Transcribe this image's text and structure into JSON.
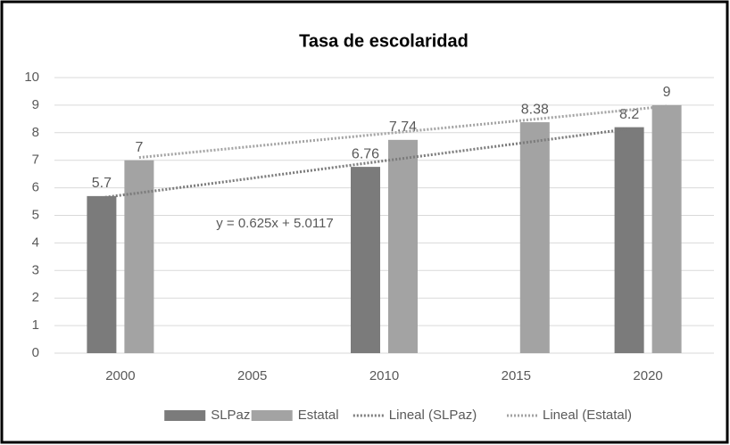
{
  "chart_data": {
    "type": "bar",
    "title": "Tasa de escolaridad",
    "categories": [
      "2000",
      "2005",
      "2010",
      "2015",
      "2020"
    ],
    "series": [
      {
        "name": "SLPaz",
        "color": "#7b7b7b",
        "values": [
          5.7,
          null,
          6.76,
          null,
          8.2
        ]
      },
      {
        "name": "Estatal",
        "color": "#a3a3a3",
        "values": [
          7,
          null,
          7.74,
          8.38,
          9
        ]
      },
      {
        "name": "Lineal (SLPaz)",
        "type": "line",
        "dash": true,
        "color": "#7b7b7b",
        "values": [
          5.64,
          6.26,
          6.89,
          7.51,
          8.14
        ]
      },
      {
        "name": "Lineal (Estatal)",
        "type": "line",
        "dash": true,
        "color": "#a3a3a3",
        "values": [
          7.1,
          7.57,
          8.03,
          8.49,
          8.96
        ]
      }
    ],
    "annotation": "y = 0.625x + 5.0117",
    "ylim": [
      0,
      10
    ],
    "yticks": [
      0,
      1,
      2,
      3,
      4,
      5,
      6,
      7,
      8,
      9,
      10
    ],
    "grid": true,
    "legend": "bottom"
  }
}
